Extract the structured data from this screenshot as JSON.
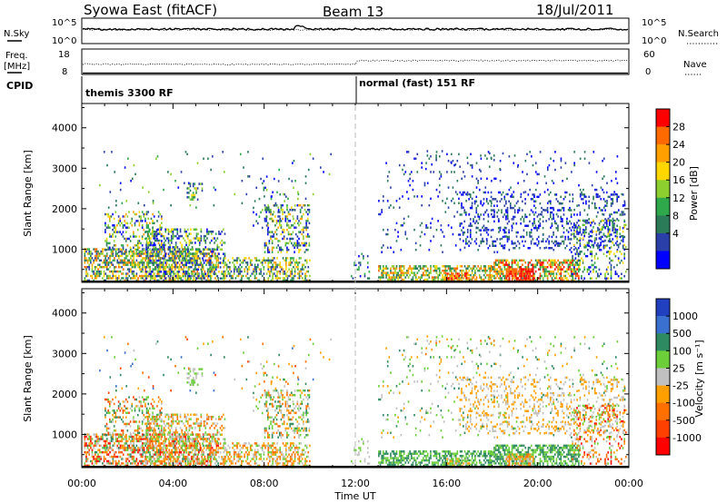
{
  "header": {
    "title_left": "Syowa East (fitACF)",
    "title_center": "Beam 13",
    "title_right": "18/Jul/2011"
  },
  "top_panels": {
    "nsky_label": "N.Sky",
    "nsearch_label": "N.Search",
    "nsky_ticks": [
      "10^5",
      "10^0"
    ],
    "nsearch_ticks": [
      "10^5",
      "10^0"
    ],
    "freq_label_1": "Freq.",
    "freq_label_2": "[MHz]",
    "freq_ticks": [
      "18",
      "8"
    ],
    "nave_label": "Nave",
    "nave_ticks": [
      "60",
      "0"
    ],
    "cpid_label": "CPID",
    "cpid_modes": [
      {
        "label": "themis 3300 RF",
        "start_hour": 0
      },
      {
        "label": "normal (fast) 151 RF",
        "start_hour": 12.0
      }
    ]
  },
  "chart_data": [
    {
      "type": "heatmap",
      "name": "power",
      "xlabel": "",
      "ylabel": "Slant Range [km]",
      "xlim": [
        0,
        24
      ],
      "ylim": [
        180,
        4600
      ],
      "x_ticks": [
        0,
        4,
        8,
        12,
        16,
        20,
        24
      ],
      "y_ticks": [
        1000,
        2000,
        3000,
        4000
      ],
      "colorbar": {
        "label": "Power [dB]",
        "ticks": [
          "28",
          "24",
          "20",
          "16",
          "12",
          "8",
          "4"
        ],
        "colors": [
          "#ff0000",
          "#ff6a00",
          "#ffa000",
          "#ffd700",
          "#8ccf2e",
          "#2ea84a",
          "#2b7b58",
          "#2a3fa8",
          "#0000ff"
        ]
      }
    },
    {
      "type": "heatmap",
      "name": "velocity",
      "xlabel": "Time UT",
      "ylabel": "Slant Range [km]",
      "xlim": [
        0,
        24
      ],
      "ylim": [
        180,
        4600
      ],
      "x_ticks": [
        0,
        4,
        8,
        12,
        16,
        20,
        24
      ],
      "x_tick_labels": [
        "00:00",
        "04:00",
        "08:00",
        "12:00",
        "16:00",
        "20:00",
        "00:00"
      ],
      "y_ticks": [
        1000,
        2000,
        3000,
        4000
      ],
      "colorbar": {
        "label": "Velocity [m s⁻¹]",
        "ticks": [
          "1000",
          "500",
          "100",
          "25",
          "-25",
          "-100",
          "-500",
          "-1000"
        ],
        "colors": [
          "#2040c0",
          "#3a70d0",
          "#2e8a60",
          "#6ccf3a",
          "#c0c0c0",
          "#ffa000",
          "#ff7000",
          "#ff4000",
          "#ff0000"
        ]
      }
    }
  ]
}
